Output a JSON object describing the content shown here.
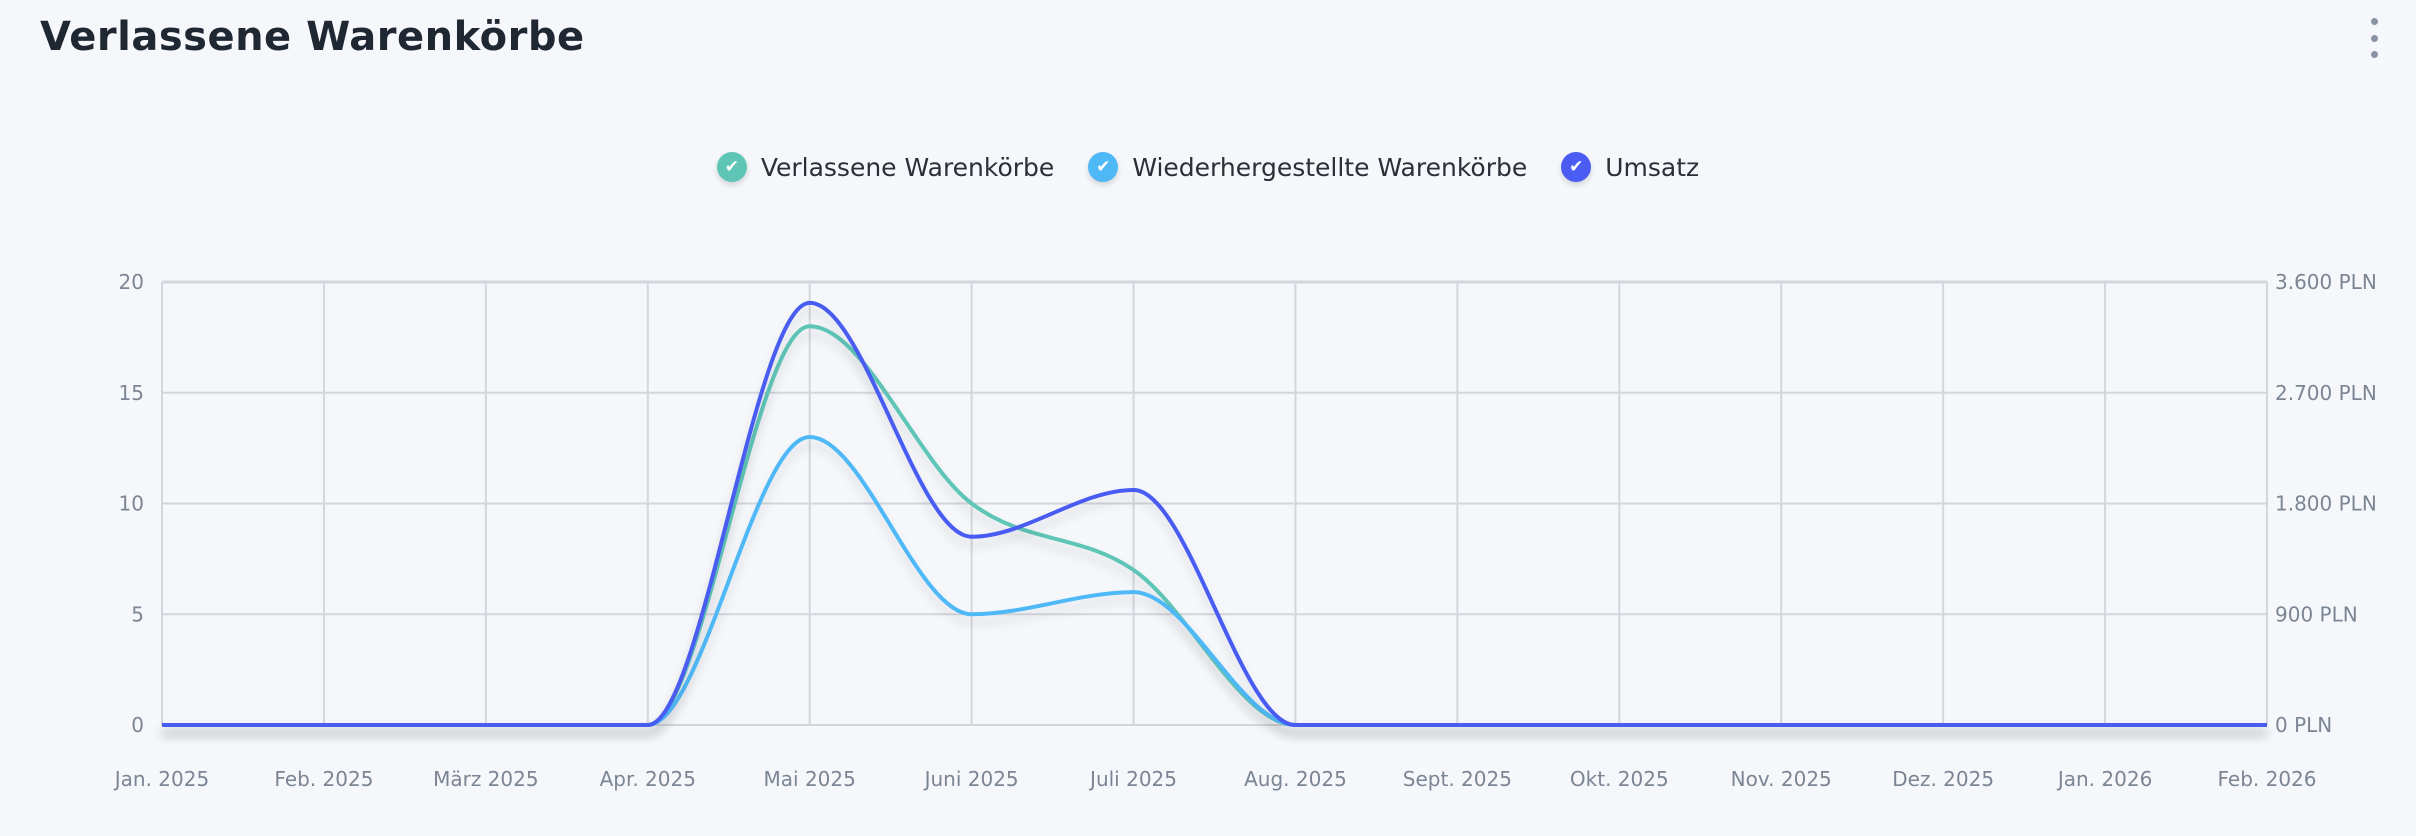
{
  "header": {
    "title": "Verlassene Warenkörbe",
    "menu_icon": "kebab-menu-icon"
  },
  "chart_data": {
    "type": "line",
    "title": "",
    "categories": [
      "Jan. 2025",
      "Feb. 2025",
      "März 2025",
      "Apr. 2025",
      "Mai 2025",
      "Juni 2025",
      "Juli 2025",
      "Aug. 2025",
      "Sept. 2025",
      "Okt. 2025",
      "Nov. 2025",
      "Dez. 2025",
      "Jan. 2026",
      "Feb. 2026"
    ],
    "series": [
      {
        "name": "Verlassene Warenkörbe",
        "axis": "left",
        "color": "#5fc5b7",
        "values": [
          0,
          0,
          0,
          0,
          18,
          10,
          7,
          0,
          0,
          0,
          0,
          0,
          0,
          0
        ]
      },
      {
        "name": "Wiederhergestellte Warenkörbe",
        "axis": "left",
        "color": "#4fb8f7",
        "values": [
          0,
          0,
          0,
          0,
          13,
          5,
          6,
          0,
          0,
          0,
          0,
          0,
          0,
          0
        ]
      },
      {
        "name": "Umsatz",
        "axis": "right",
        "color": "#4a5cf2",
        "values": [
          0,
          0,
          0,
          0,
          3430,
          1530,
          1910,
          0,
          0,
          0,
          0,
          0,
          0,
          0
        ]
      }
    ],
    "y_left": {
      "ylim": [
        0,
        20
      ],
      "ticks": [
        "0",
        "5",
        "10",
        "15",
        "20"
      ]
    },
    "y_right": {
      "ylim": [
        0,
        3600
      ],
      "ticks": [
        "0 PLN",
        "900 PLN",
        "1.800 PLN",
        "2.700 PLN",
        "3.600 PLN"
      ]
    },
    "grid": true,
    "legend": "top-center"
  }
}
